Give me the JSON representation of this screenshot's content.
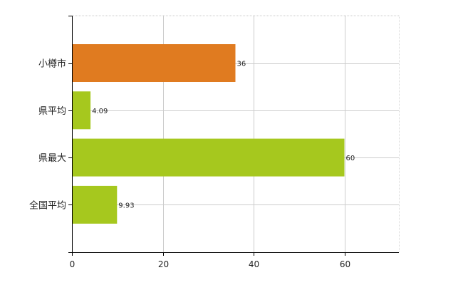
{
  "chart_data": {
    "type": "bar",
    "orientation": "horizontal",
    "categories": [
      "小樽市",
      "県平均",
      "県最大",
      "全国平均"
    ],
    "values": [
      36,
      4.09,
      60,
      9.93
    ],
    "value_labels": [
      "36",
      "4.09",
      "60",
      "9.93"
    ],
    "bar_colors": [
      "#e07b20",
      "#a6c81e",
      "#a6c81e",
      "#a6c81e"
    ],
    "xlim": [
      0,
      72
    ],
    "xticks": [
      0,
      20,
      40,
      60
    ],
    "xtick_labels": [
      "0",
      "20",
      "40",
      "60"
    ],
    "grid": true,
    "title": "",
    "xlabel": "",
    "ylabel": ""
  }
}
